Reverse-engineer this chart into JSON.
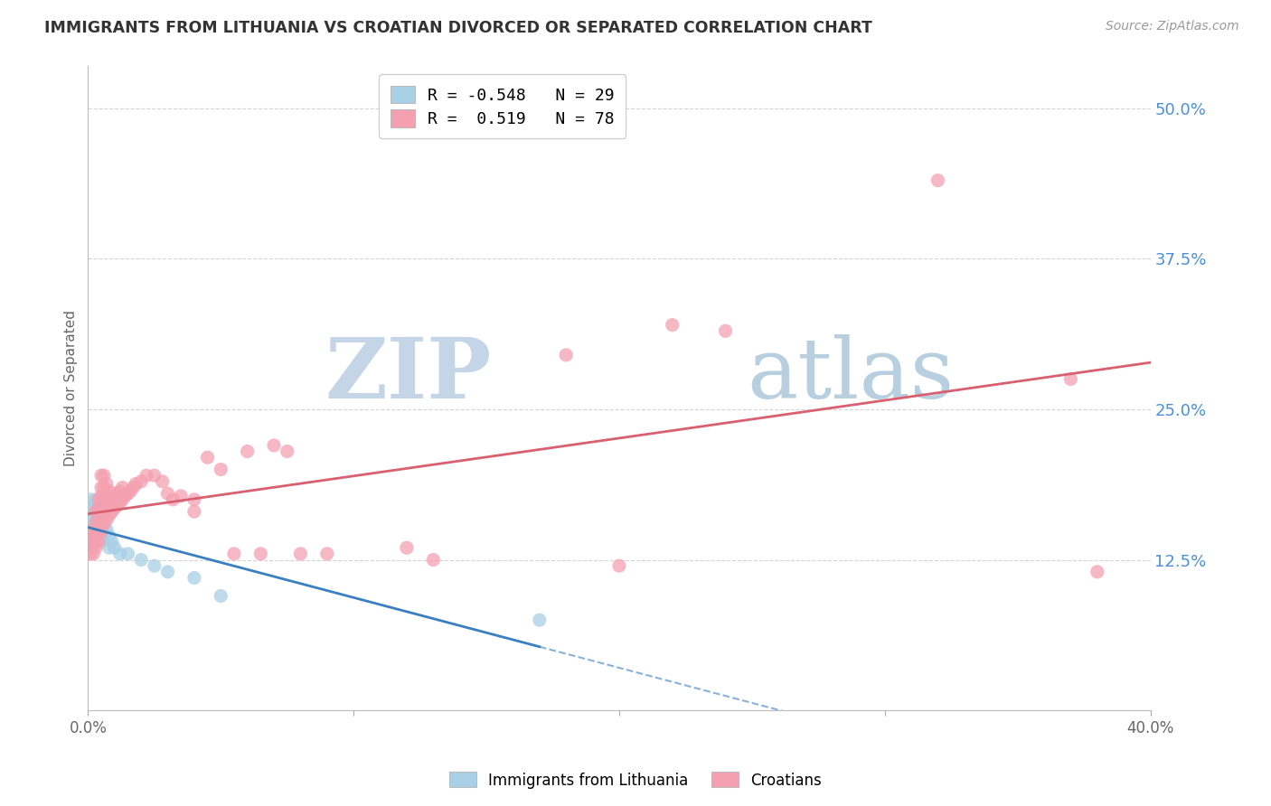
{
  "title": "IMMIGRANTS FROM LITHUANIA VS CROATIAN DIVORCED OR SEPARATED CORRELATION CHART",
  "source": "Source: ZipAtlas.com",
  "ylabel": "Divorced or Separated",
  "ytick_labels": [
    "12.5%",
    "25.0%",
    "37.5%",
    "50.0%"
  ],
  "ytick_values": [
    0.125,
    0.25,
    0.375,
    0.5
  ],
  "xmin": 0.0,
  "xmax": 0.4,
  "ymin": 0.0,
  "ymax": 0.535,
  "legend_entry1": "R = -0.548   N = 29",
  "legend_entry2": "R =  0.519   N = 78",
  "legend_label1": "Immigrants from Lithuania",
  "legend_label2": "Croatians",
  "blue_color": "#a8d0e6",
  "pink_color": "#f4a0b0",
  "blue_line_color": "#3a7fc1",
  "pink_line_color": "#d96070",
  "watermark_zip": "ZIP",
  "watermark_atlas": "atlas",
  "blue_R": -0.548,
  "pink_R": 0.519,
  "blue_N": 29,
  "pink_N": 78,
  "blue_scatter": [
    [
      0.001,
      0.175
    ],
    [
      0.001,
      0.16
    ],
    [
      0.002,
      0.165
    ],
    [
      0.002,
      0.155
    ],
    [
      0.002,
      0.17
    ],
    [
      0.003,
      0.175
    ],
    [
      0.003,
      0.16
    ],
    [
      0.003,
      0.155
    ],
    [
      0.004,
      0.168
    ],
    [
      0.004,
      0.155
    ],
    [
      0.004,
      0.145
    ],
    [
      0.005,
      0.16
    ],
    [
      0.005,
      0.15
    ],
    [
      0.005,
      0.14
    ],
    [
      0.006,
      0.155
    ],
    [
      0.006,
      0.145
    ],
    [
      0.007,
      0.15
    ],
    [
      0.008,
      0.145
    ],
    [
      0.008,
      0.135
    ],
    [
      0.009,
      0.14
    ],
    [
      0.01,
      0.135
    ],
    [
      0.012,
      0.13
    ],
    [
      0.015,
      0.13
    ],
    [
      0.02,
      0.125
    ],
    [
      0.025,
      0.12
    ],
    [
      0.03,
      0.115
    ],
    [
      0.04,
      0.11
    ],
    [
      0.05,
      0.095
    ],
    [
      0.17,
      0.075
    ]
  ],
  "pink_scatter": [
    [
      0.001,
      0.13
    ],
    [
      0.001,
      0.135
    ],
    [
      0.001,
      0.14
    ],
    [
      0.001,
      0.145
    ],
    [
      0.002,
      0.13
    ],
    [
      0.002,
      0.138
    ],
    [
      0.002,
      0.145
    ],
    [
      0.002,
      0.15
    ],
    [
      0.003,
      0.135
    ],
    [
      0.003,
      0.14
    ],
    [
      0.003,
      0.148
    ],
    [
      0.003,
      0.155
    ],
    [
      0.003,
      0.165
    ],
    [
      0.004,
      0.14
    ],
    [
      0.004,
      0.148
    ],
    [
      0.004,
      0.158
    ],
    [
      0.004,
      0.168
    ],
    [
      0.004,
      0.175
    ],
    [
      0.005,
      0.148
    ],
    [
      0.005,
      0.158
    ],
    [
      0.005,
      0.168
    ],
    [
      0.005,
      0.178
    ],
    [
      0.005,
      0.185
    ],
    [
      0.005,
      0.195
    ],
    [
      0.006,
      0.155
    ],
    [
      0.006,
      0.165
    ],
    [
      0.006,
      0.175
    ],
    [
      0.006,
      0.185
    ],
    [
      0.006,
      0.195
    ],
    [
      0.007,
      0.158
    ],
    [
      0.007,
      0.168
    ],
    [
      0.007,
      0.178
    ],
    [
      0.007,
      0.188
    ],
    [
      0.008,
      0.162
    ],
    [
      0.008,
      0.172
    ],
    [
      0.008,
      0.182
    ],
    [
      0.009,
      0.165
    ],
    [
      0.009,
      0.175
    ],
    [
      0.01,
      0.168
    ],
    [
      0.01,
      0.178
    ],
    [
      0.011,
      0.17
    ],
    [
      0.011,
      0.18
    ],
    [
      0.012,
      0.172
    ],
    [
      0.012,
      0.182
    ],
    [
      0.013,
      0.175
    ],
    [
      0.013,
      0.185
    ],
    [
      0.014,
      0.178
    ],
    [
      0.015,
      0.18
    ],
    [
      0.016,
      0.182
    ],
    [
      0.017,
      0.185
    ],
    [
      0.018,
      0.188
    ],
    [
      0.02,
      0.19
    ],
    [
      0.022,
      0.195
    ],
    [
      0.025,
      0.195
    ],
    [
      0.028,
      0.19
    ],
    [
      0.03,
      0.18
    ],
    [
      0.032,
      0.175
    ],
    [
      0.035,
      0.178
    ],
    [
      0.04,
      0.175
    ],
    [
      0.04,
      0.165
    ],
    [
      0.045,
      0.21
    ],
    [
      0.05,
      0.2
    ],
    [
      0.055,
      0.13
    ],
    [
      0.06,
      0.215
    ],
    [
      0.065,
      0.13
    ],
    [
      0.07,
      0.22
    ],
    [
      0.075,
      0.215
    ],
    [
      0.08,
      0.13
    ],
    [
      0.09,
      0.13
    ],
    [
      0.12,
      0.135
    ],
    [
      0.13,
      0.125
    ],
    [
      0.18,
      0.295
    ],
    [
      0.2,
      0.12
    ],
    [
      0.22,
      0.32
    ],
    [
      0.24,
      0.315
    ],
    [
      0.32,
      0.44
    ],
    [
      0.37,
      0.275
    ],
    [
      0.38,
      0.115
    ]
  ],
  "background_color": "#ffffff",
  "grid_color": "#c8c8c8",
  "title_color": "#333333",
  "axis_label_color": "#4a90d9",
  "watermark_color_zip": "#c5d5e8",
  "watermark_color_atlas": "#b8cfe0"
}
